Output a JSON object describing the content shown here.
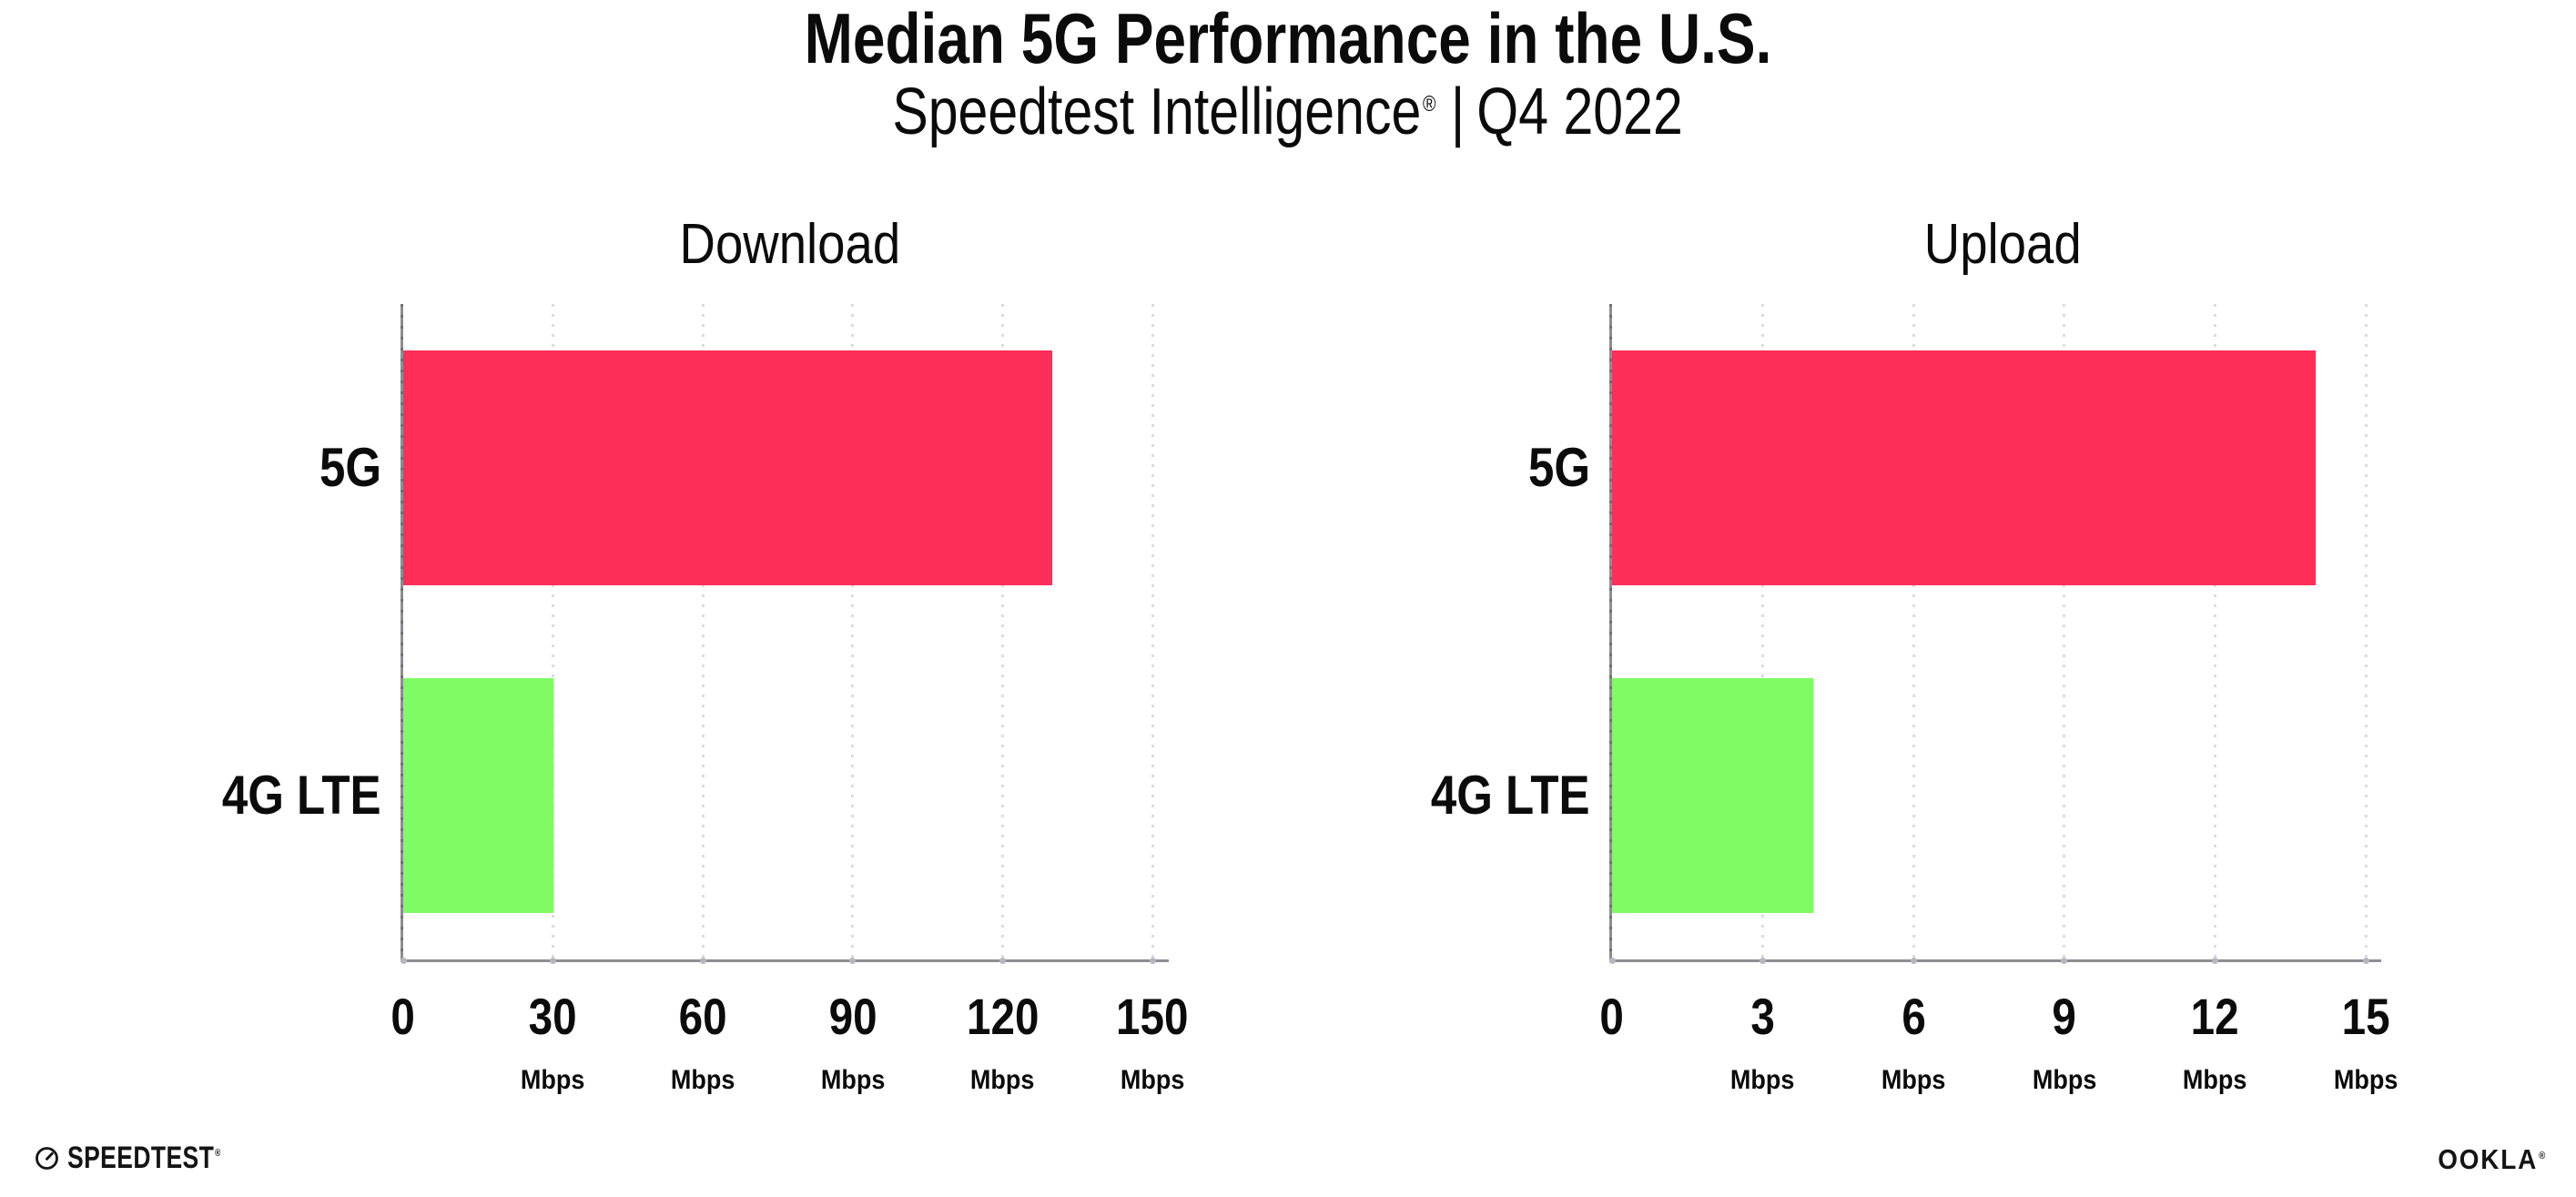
{
  "header": {
    "title": "Median 5G Performance in the U.S.",
    "subtitle_brand": "Speedtest Intelligence",
    "subtitle_reg": "®",
    "subtitle_separator": "|",
    "subtitle_period": "Q4 2022"
  },
  "footer": {
    "speedtest_label": "SPEEDTEST",
    "speedtest_reg": "®",
    "speedtest_icon": "gauge-icon",
    "ookla_label": "OOKLA",
    "ookla_reg": "®"
  },
  "colors": {
    "bar_5g": "#ff2e59",
    "bar_4g_lte": "#80fb63",
    "axis": "#8d8d92",
    "grid_dots": "#dbdbe4",
    "text": "#0b0b0b"
  },
  "chart_data": [
    {
      "type": "bar",
      "orientation": "horizontal",
      "title": "Download",
      "categories": [
        "5G",
        "4G LTE"
      ],
      "values": [
        130,
        30
      ],
      "unit": "Mbps",
      "xlabel": "",
      "ylabel": "",
      "xlim": [
        0,
        150
      ],
      "xticks": [
        0,
        30,
        60,
        90,
        120,
        150
      ],
      "xtick_unit_label": "Mbps",
      "grid": "dotted-vertical",
      "legend_position": "none",
      "bar_colors": [
        "#ff2e59",
        "#80fb63"
      ]
    },
    {
      "type": "bar",
      "orientation": "horizontal",
      "title": "Upload",
      "categories": [
        "5G",
        "4G LTE"
      ],
      "values": [
        14,
        4
      ],
      "unit": "Mbps",
      "xlabel": "",
      "ylabel": "",
      "xlim": [
        0,
        15
      ],
      "xticks": [
        0,
        3,
        6,
        9,
        12,
        15
      ],
      "xtick_unit_label": "Mbps",
      "grid": "dotted-vertical",
      "legend_position": "none",
      "bar_colors": [
        "#ff2e59",
        "#80fb63"
      ]
    }
  ]
}
